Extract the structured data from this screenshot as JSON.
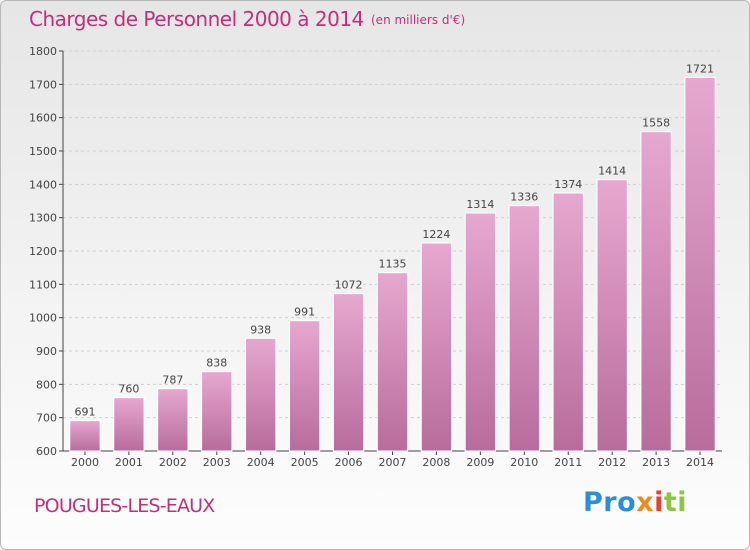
{
  "header": {
    "title": "Charges de Personnel 2000 à 2014",
    "subtitle": "(en milliers d'€)"
  },
  "footer": {
    "town": "POUGUES-LES-EAUX",
    "logo_parts": [
      "Pro",
      "x",
      "i",
      "ti"
    ]
  },
  "colors": {
    "accent": "#c0307a",
    "bar_top": "#e6a8cf",
    "bar_bottom": "#b86c9c"
  },
  "chart_data": {
    "type": "bar",
    "title": "Charges de Personnel 2000 à 2014",
    "subtitle": "(en milliers d'€)",
    "categories": [
      "2000",
      "2001",
      "2002",
      "2003",
      "2004",
      "2005",
      "2006",
      "2007",
      "2008",
      "2009",
      "2010",
      "2011",
      "2012",
      "2013",
      "2014"
    ],
    "values": [
      691,
      760,
      787,
      838,
      938,
      991,
      1072,
      1135,
      1224,
      1314,
      1336,
      1374,
      1414,
      1558,
      1721
    ],
    "ylim": [
      600,
      1800
    ],
    "yticks": [
      600,
      700,
      800,
      900,
      1000,
      1100,
      1200,
      1300,
      1400,
      1500,
      1600,
      1700,
      1800
    ],
    "grid": true,
    "legend": "none",
    "data_labels": true
  }
}
